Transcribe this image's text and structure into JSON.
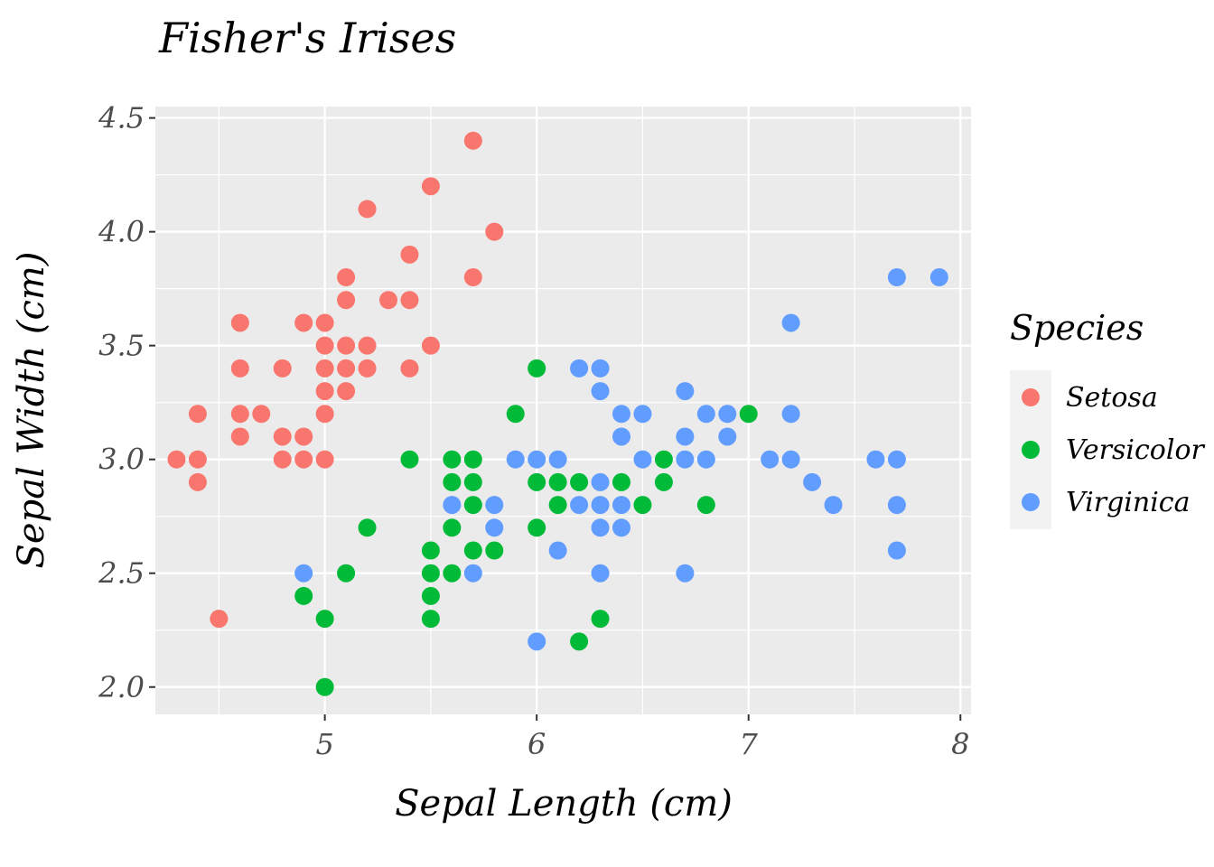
{
  "chart_data": {
    "type": "scatter",
    "title": "Fisher's Irises",
    "xlabel": "Sepal Length (cm)",
    "ylabel": "Sepal Width (cm)",
    "xlim": [
      4.2,
      8.05
    ],
    "ylim": [
      1.88,
      4.55
    ],
    "x_ticks": [
      5,
      6,
      7,
      8
    ],
    "x_tick_labels": [
      "5",
      "6",
      "7",
      "8"
    ],
    "y_ticks": [
      2.0,
      2.5,
      3.0,
      3.5,
      4.0,
      4.5
    ],
    "y_tick_labels": [
      "2.0",
      "2.5",
      "3.0",
      "3.5",
      "4.0",
      "4.5"
    ],
    "grid": true,
    "legend": {
      "title": "Species",
      "position": "right"
    },
    "series": [
      {
        "name": "Setosa",
        "color": "#F8766D",
        "points": [
          [
            5.7,
            4.4
          ],
          [
            5.5,
            4.2
          ],
          [
            5.2,
            4.1
          ],
          [
            5.8,
            4.0
          ],
          [
            5.4,
            3.9
          ],
          [
            5.1,
            3.8
          ],
          [
            5.7,
            3.8
          ],
          [
            5.1,
            3.7
          ],
          [
            5.3,
            3.7
          ],
          [
            5.4,
            3.7
          ],
          [
            4.6,
            3.6
          ],
          [
            4.9,
            3.6
          ],
          [
            5.0,
            3.6
          ],
          [
            5.0,
            3.5
          ],
          [
            5.1,
            3.5
          ],
          [
            5.2,
            3.5
          ],
          [
            5.5,
            3.5
          ],
          [
            4.6,
            3.4
          ],
          [
            4.8,
            3.4
          ],
          [
            5.0,
            3.4
          ],
          [
            5.1,
            3.4
          ],
          [
            5.2,
            3.4
          ],
          [
            5.4,
            3.4
          ],
          [
            5.0,
            3.3
          ],
          [
            5.1,
            3.3
          ],
          [
            4.4,
            3.2
          ],
          [
            4.6,
            3.2
          ],
          [
            4.7,
            3.2
          ],
          [
            5.0,
            3.2
          ],
          [
            4.6,
            3.1
          ],
          [
            4.8,
            3.1
          ],
          [
            4.9,
            3.1
          ],
          [
            4.3,
            3.0
          ],
          [
            4.4,
            3.0
          ],
          [
            4.8,
            3.0
          ],
          [
            4.9,
            3.0
          ],
          [
            5.0,
            3.0
          ],
          [
            4.4,
            2.9
          ],
          [
            4.5,
            2.3
          ]
        ]
      },
      {
        "name": "Versicolor",
        "color": "#00BA38",
        "points": [
          [
            6.0,
            3.4
          ],
          [
            5.9,
            3.2
          ],
          [
            7.0,
            3.2
          ],
          [
            5.4,
            3.0
          ],
          [
            5.6,
            3.0
          ],
          [
            5.7,
            3.0
          ],
          [
            6.6,
            3.0
          ],
          [
            5.6,
            2.9
          ],
          [
            5.7,
            2.9
          ],
          [
            6.0,
            2.9
          ],
          [
            6.1,
            2.9
          ],
          [
            6.2,
            2.9
          ],
          [
            6.4,
            2.9
          ],
          [
            6.6,
            2.9
          ],
          [
            5.7,
            2.8
          ],
          [
            6.1,
            2.8
          ],
          [
            6.5,
            2.8
          ],
          [
            6.8,
            2.8
          ],
          [
            5.2,
            2.7
          ],
          [
            5.6,
            2.7
          ],
          [
            6.0,
            2.7
          ],
          [
            5.5,
            2.6
          ],
          [
            5.7,
            2.6
          ],
          [
            5.8,
            2.6
          ],
          [
            5.1,
            2.5
          ],
          [
            5.5,
            2.5
          ],
          [
            5.6,
            2.5
          ],
          [
            4.9,
            2.4
          ],
          [
            5.5,
            2.4
          ],
          [
            5.0,
            2.3
          ],
          [
            5.5,
            2.3
          ],
          [
            6.3,
            2.3
          ],
          [
            6.2,
            2.2
          ],
          [
            5.0,
            2.0
          ]
        ]
      },
      {
        "name": "Virginica",
        "color": "#619CFF",
        "points": [
          [
            7.7,
            3.8
          ],
          [
            7.9,
            3.8
          ],
          [
            7.2,
            3.6
          ],
          [
            6.2,
            3.4
          ],
          [
            6.3,
            3.4
          ],
          [
            6.3,
            3.3
          ],
          [
            6.7,
            3.3
          ],
          [
            6.4,
            3.2
          ],
          [
            6.5,
            3.2
          ],
          [
            6.8,
            3.2
          ],
          [
            6.9,
            3.2
          ],
          [
            7.2,
            3.2
          ],
          [
            6.4,
            3.1
          ],
          [
            6.7,
            3.1
          ],
          [
            6.9,
            3.1
          ],
          [
            5.9,
            3.0
          ],
          [
            6.0,
            3.0
          ],
          [
            6.1,
            3.0
          ],
          [
            6.5,
            3.0
          ],
          [
            6.7,
            3.0
          ],
          [
            6.8,
            3.0
          ],
          [
            7.1,
            3.0
          ],
          [
            7.2,
            3.0
          ],
          [
            7.6,
            3.0
          ],
          [
            7.7,
            3.0
          ],
          [
            6.3,
            2.9
          ],
          [
            7.3,
            2.9
          ],
          [
            5.6,
            2.8
          ],
          [
            5.8,
            2.8
          ],
          [
            6.2,
            2.8
          ],
          [
            6.3,
            2.8
          ],
          [
            6.4,
            2.8
          ],
          [
            7.4,
            2.8
          ],
          [
            7.7,
            2.8
          ],
          [
            5.8,
            2.7
          ],
          [
            6.3,
            2.7
          ],
          [
            6.4,
            2.7
          ],
          [
            6.1,
            2.6
          ],
          [
            7.7,
            2.6
          ],
          [
            4.9,
            2.5
          ],
          [
            5.7,
            2.5
          ],
          [
            6.3,
            2.5
          ],
          [
            6.7,
            2.5
          ],
          [
            6.0,
            2.2
          ]
        ]
      }
    ]
  }
}
